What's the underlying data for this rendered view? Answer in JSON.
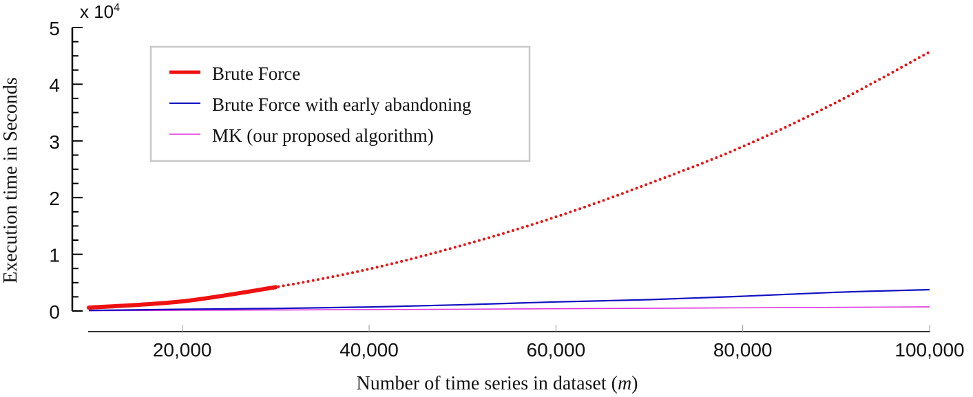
{
  "chart_data": {
    "type": "line",
    "title": "",
    "xlabel": "Number of time series in dataset (m)",
    "xlabel_main": "Number of time series in dataset (",
    "xlabel_var": "m",
    "xlabel_close": ")",
    "ylabel": "Execution time in Seconds",
    "y_multiplier": "x 10",
    "y_multiplier_exp": "4",
    "xlim": [
      10000,
      100000
    ],
    "ylim": [
      0,
      50000
    ],
    "x_ticks": [
      20000,
      40000,
      60000,
      80000,
      100000
    ],
    "x_tick_labels": [
      "20,000",
      "40,000",
      "60,000",
      "80,000",
      "100,000"
    ],
    "y_ticks": [
      0,
      1,
      2,
      3,
      4,
      5
    ],
    "y_tick_labels": [
      "0",
      "1",
      "2",
      "3",
      "4",
      "5"
    ],
    "y_minor_tick_step": 0.25,
    "grid": false,
    "legend_position": "upper-left",
    "x": [
      10000,
      20000,
      30000,
      40000,
      50000,
      60000,
      70000,
      80000,
      90000,
      100000
    ],
    "series": [
      {
        "name": "Brute Force",
        "color": "#ee1111",
        "style": "solid-then-dotted",
        "solid_until_x": 30000,
        "values": [
          600,
          1700,
          4200,
          7400,
          11600,
          16600,
          22500,
          29000,
          36800,
          45700
        ]
      },
      {
        "name": "Brute Force with early abandoning",
        "color": "#1010c0",
        "style": "solid",
        "values": [
          100,
          300,
          450,
          700,
          1100,
          1600,
          2000,
          2600,
          3300,
          3760
        ]
      },
      {
        "name": "MK (our proposed algorithm)",
        "color": "#dd33dd",
        "style": "solid",
        "values": [
          50,
          120,
          180,
          250,
          320,
          400,
          480,
          560,
          650,
          730
        ]
      }
    ]
  },
  "legend": {
    "items": [
      {
        "label": "Brute Force",
        "color": "#ee1111"
      },
      {
        "label": "Brute Force with early abandoning",
        "color": "#1010c0"
      },
      {
        "label": "MK (our proposed algorithm)",
        "color": "#dd33dd"
      }
    ]
  }
}
